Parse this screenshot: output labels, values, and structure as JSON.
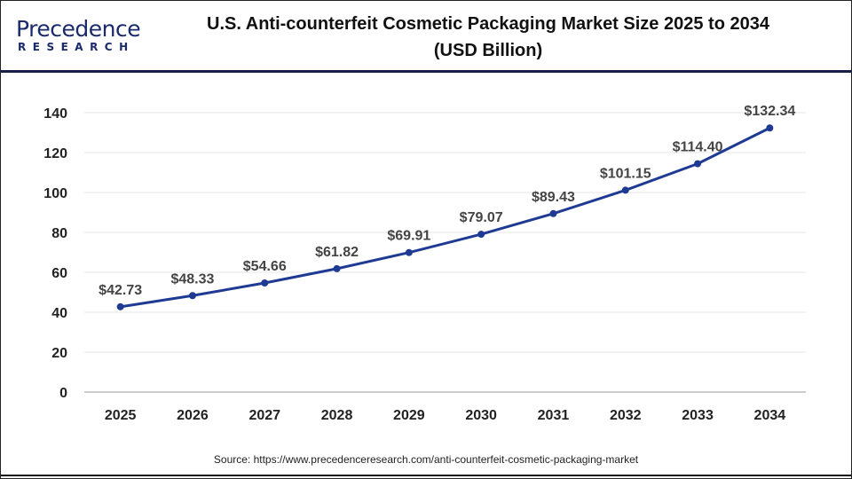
{
  "logo": {
    "line1": "Precedence",
    "line2": "RESEARCH"
  },
  "title": {
    "line1": "U.S. Anti-counterfeit Cosmetic Packaging Market Size 2025 to 2034",
    "line2": "(USD Billion)"
  },
  "source": "Source: https://www.precedenceresearch.com/anti-counterfeit-cosmetic-packaging-market",
  "chart_data": {
    "type": "line",
    "title": "U.S. Anti-counterfeit Cosmetic Packaging Market Size 2025 to 2034 (USD Billion)",
    "categories": [
      "2025",
      "2026",
      "2027",
      "2028",
      "2029",
      "2030",
      "2031",
      "2032",
      "2033",
      "2034"
    ],
    "values": [
      42.73,
      48.33,
      54.66,
      61.82,
      69.91,
      79.07,
      89.43,
      101.15,
      114.4,
      132.34
    ],
    "labels": [
      "$42.73",
      "$48.33",
      "$54.66",
      "$61.82",
      "$69.91",
      "$79.07",
      "$89.43",
      "$101.15",
      "$114.40",
      "$132.34"
    ],
    "yticks": [
      0,
      20,
      40,
      60,
      80,
      100,
      120,
      140
    ],
    "ylim": [
      0,
      140
    ],
    "grid": true,
    "line_color": "#1f3a93"
  }
}
